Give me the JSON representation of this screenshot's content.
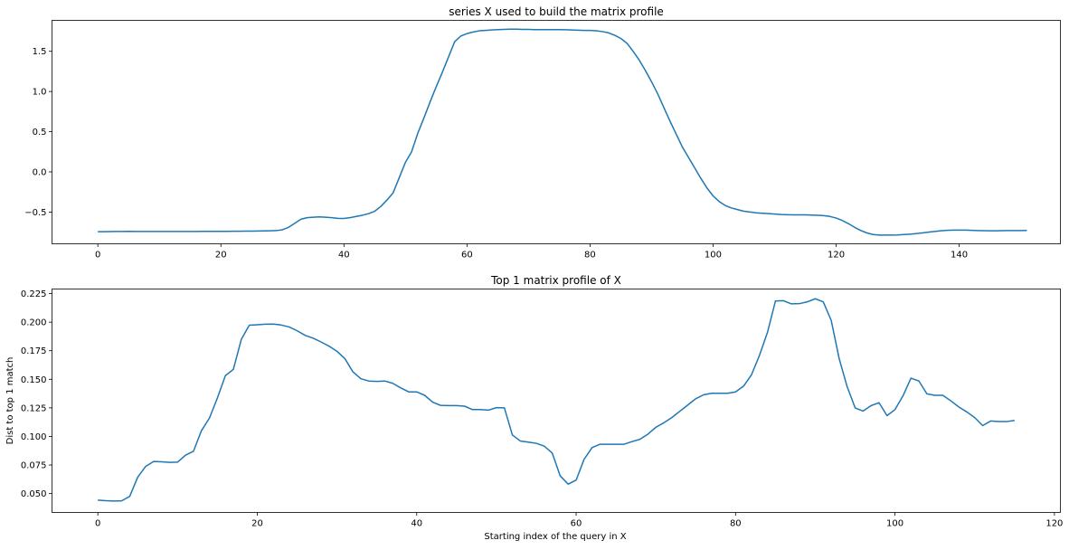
{
  "chart_data": [
    {
      "type": "line",
      "title": "series X used to build the matrix profile",
      "xlabel": "",
      "ylabel": "",
      "xlim": [
        -7.45,
        156.45
      ],
      "ylim": [
        -0.895,
        1.885
      ],
      "xticks": [
        0,
        20,
        40,
        60,
        80,
        100,
        120,
        140
      ],
      "yticks": [
        -0.5,
        0.0,
        0.5,
        1.0,
        1.5
      ],
      "ytick_labels": [
        "−0.5",
        "0.0",
        "0.5",
        "1.0",
        "1.5"
      ],
      "grid": false,
      "color": "#1f77b4",
      "x_start": 0,
      "values": [
        -0.745,
        -0.744,
        -0.743,
        -0.742,
        -0.741,
        -0.74,
        -0.741,
        -0.741,
        -0.741,
        -0.741,
        -0.741,
        -0.741,
        -0.741,
        -0.741,
        -0.741,
        -0.741,
        -0.741,
        -0.74,
        -0.74,
        -0.74,
        -0.74,
        -0.74,
        -0.739,
        -0.739,
        -0.738,
        -0.737,
        -0.736,
        -0.735,
        -0.733,
        -0.731,
        -0.72,
        -0.69,
        -0.64,
        -0.59,
        -0.57,
        -0.565,
        -0.56,
        -0.565,
        -0.57,
        -0.578,
        -0.58,
        -0.57,
        -0.555,
        -0.54,
        -0.52,
        -0.49,
        -0.43,
        -0.35,
        -0.26,
        -0.07,
        0.12,
        0.25,
        0.48,
        0.67,
        0.87,
        1.06,
        1.24,
        1.43,
        1.62,
        1.69,
        1.72,
        1.74,
        1.755,
        1.76,
        1.765,
        1.77,
        1.772,
        1.775,
        1.775,
        1.772,
        1.772,
        1.77,
        1.77,
        1.77,
        1.77,
        1.77,
        1.768,
        1.765,
        1.762,
        1.76,
        1.76,
        1.755,
        1.745,
        1.73,
        1.7,
        1.66,
        1.6,
        1.5,
        1.39,
        1.26,
        1.12,
        0.97,
        0.8,
        0.63,
        0.47,
        0.31,
        0.18,
        0.05,
        -0.08,
        -0.2,
        -0.3,
        -0.37,
        -0.42,
        -0.45,
        -0.47,
        -0.49,
        -0.5,
        -0.51,
        -0.515,
        -0.52,
        -0.525,
        -0.53,
        -0.533,
        -0.535,
        -0.535,
        -0.535,
        -0.537,
        -0.54,
        -0.545,
        -0.555,
        -0.575,
        -0.605,
        -0.645,
        -0.69,
        -0.73,
        -0.76,
        -0.78,
        -0.787,
        -0.787,
        -0.786,
        -0.785,
        -0.78,
        -0.775,
        -0.768,
        -0.76,
        -0.75,
        -0.742,
        -0.733,
        -0.727,
        -0.725,
        -0.725,
        -0.725,
        -0.727,
        -0.73,
        -0.732,
        -0.733,
        -0.733,
        -0.732,
        -0.731,
        -0.73,
        -0.73,
        -0.729
      ]
    },
    {
      "type": "line",
      "title": "Top 1 matrix profile of X",
      "xlabel": "Starting index of the query in X",
      "ylabel": "Dist to top 1 match",
      "xlim": [
        -5.75,
        120.75
      ],
      "ylim": [
        0.0335,
        0.229
      ],
      "xticks": [
        0,
        20,
        40,
        60,
        80,
        100,
        120
      ],
      "yticks": [
        0.05,
        0.075,
        0.1,
        0.125,
        0.15,
        0.175,
        0.2,
        0.225
      ],
      "ytick_labels": [
        "0.050",
        "0.075",
        "0.100",
        "0.125",
        "0.150",
        "0.175",
        "0.200",
        "0.225"
      ],
      "grid": false,
      "color": "#1f77b4",
      "x_start": 0,
      "values": [
        0.0443,
        0.0438,
        0.0435,
        0.0437,
        0.0476,
        0.0643,
        0.0738,
        0.0781,
        0.0778,
        0.0773,
        0.0775,
        0.0836,
        0.0871,
        0.1051,
        0.1161,
        0.1337,
        0.1532,
        0.1587,
        0.185,
        0.1973,
        0.1977,
        0.1982,
        0.1983,
        0.1975,
        0.1958,
        0.1925,
        0.1885,
        0.186,
        0.1827,
        0.179,
        0.1745,
        0.168,
        0.1565,
        0.1505,
        0.1485,
        0.1482,
        0.1485,
        0.1465,
        0.1425,
        0.139,
        0.139,
        0.136,
        0.13,
        0.1272,
        0.127,
        0.127,
        0.1265,
        0.1235,
        0.1235,
        0.123,
        0.1252,
        0.125,
        0.1013,
        0.096,
        0.095,
        0.094,
        0.0915,
        0.0855,
        0.0655,
        0.0583,
        0.0618,
        0.08,
        0.0902,
        0.0932,
        0.0932,
        0.0932,
        0.0932,
        0.0955,
        0.0975,
        0.102,
        0.108,
        0.112,
        0.1165,
        0.122,
        0.1275,
        0.133,
        0.1365,
        0.1378,
        0.1378,
        0.1378,
        0.139,
        0.144,
        0.154,
        0.171,
        0.191,
        0.2185,
        0.2188,
        0.216,
        0.2162,
        0.2178,
        0.2205,
        0.2178,
        0.2015,
        0.168,
        0.1435,
        0.125,
        0.1222,
        0.127,
        0.1295,
        0.1182,
        0.1235,
        0.1355,
        0.151,
        0.1485,
        0.1373,
        0.136,
        0.136,
        0.1312,
        0.1258,
        0.1215,
        0.1165,
        0.1095,
        0.1135,
        0.113,
        0.113,
        0.114
      ]
    }
  ]
}
